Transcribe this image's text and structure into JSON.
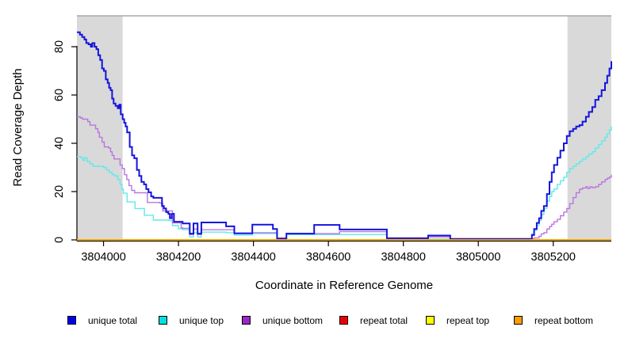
{
  "figure": {
    "background": "#ffffff"
  },
  "x_axis": {
    "title": "Coordinate in Reference Genome",
    "ticks": [
      3804000,
      3804200,
      3804400,
      3804600,
      3804800,
      3805000,
      3805200
    ]
  },
  "y_axis": {
    "title": "Read Coverage Depth",
    "ticks": [
      0,
      20,
      40,
      60,
      80
    ]
  },
  "colors": {
    "shaded_region": "#d9d9d9",
    "top_border": "#a8a8a8",
    "axis": "#000000",
    "unique_total": "#1414dc",
    "unique_top": "#5feaea",
    "unique_bottom": "#bb75e0",
    "repeat_total": "#e00000",
    "repeat_top": "#ffff00",
    "repeat_bottom": "#ffa500"
  },
  "legend": [
    {
      "label": "unique total",
      "color": "#0000ee"
    },
    {
      "label": "unique top",
      "color": "#00e0e0"
    },
    {
      "label": "unique bottom",
      "color": "#9a28c8"
    },
    {
      "label": "repeat total",
      "color": "#ee0000"
    },
    {
      "label": "repeat top",
      "color": "#ffff00"
    },
    {
      "label": "repeat bottom",
      "color": "#ff9d00"
    }
  ],
  "chart_data": {
    "type": "line",
    "step": true,
    "title": "",
    "xlabel": "Coordinate in Reference Genome",
    "ylabel": "Read Coverage Depth",
    "xlim": [
      3803929,
      3805355
    ],
    "ylim": [
      0,
      94
    ],
    "grid": false,
    "legend_position": "bottom",
    "shaded_regions": [
      {
        "from": 3803929,
        "to": 3804051
      },
      {
        "from": 3805238,
        "to": 3805355
      }
    ],
    "series": [
      {
        "name": "repeat total",
        "key": "repeat_total",
        "width": 1.4,
        "points": [
          [
            3803929,
            0
          ],
          [
            3805355,
            0
          ]
        ]
      },
      {
        "name": "repeat top",
        "key": "repeat_top",
        "width": 1.4,
        "points": [
          [
            3803929,
            0
          ],
          [
            3805355,
            0
          ]
        ]
      },
      {
        "name": "unique top",
        "key": "unique_top",
        "width": 1.4,
        "points": [
          [
            3803929,
            34.5
          ],
          [
            3803940,
            34
          ],
          [
            3803945,
            33
          ],
          [
            3803950,
            34
          ],
          [
            3803956,
            32.5
          ],
          [
            3803964,
            31.5
          ],
          [
            3803972,
            30.5
          ],
          [
            3804000,
            30
          ],
          [
            3804008,
            29
          ],
          [
            3804015,
            28
          ],
          [
            3804023,
            27
          ],
          [
            3804030,
            26.5
          ],
          [
            3804038,
            25
          ],
          [
            3804044,
            23
          ],
          [
            3804049,
            21
          ],
          [
            3804053,
            19.3
          ],
          [
            3804063,
            15.7
          ],
          [
            3804084,
            13
          ],
          [
            3804109,
            10.2
          ],
          [
            3804133,
            8.2
          ],
          [
            3804175,
            8
          ],
          [
            3804184,
            5.9
          ],
          [
            3804200,
            4.6
          ],
          [
            3804211,
            4.2
          ],
          [
            3804230,
            1.2
          ],
          [
            3804240,
            3
          ],
          [
            3804251,
            1.2
          ],
          [
            3804261,
            3.2
          ],
          [
            3804327,
            3
          ],
          [
            3804349,
            2
          ],
          [
            3804397,
            2.6
          ],
          [
            3804463,
            0.5
          ],
          [
            3804488,
            2.2
          ],
          [
            3804756,
            0.4
          ],
          [
            3805137,
            0.4
          ],
          [
            3805143,
            2.5
          ],
          [
            3805149,
            4
          ],
          [
            3805156,
            6
          ],
          [
            3805162,
            8
          ],
          [
            3805168,
            10.5
          ],
          [
            3805175,
            13
          ],
          [
            3805183,
            16
          ],
          [
            3805190,
            18
          ],
          [
            3805196,
            20
          ],
          [
            3805202,
            21
          ],
          [
            3805211,
            23
          ],
          [
            3805219,
            24.5
          ],
          [
            3805228,
            26
          ],
          [
            3805236,
            28
          ],
          [
            3805244,
            29.5
          ],
          [
            3805253,
            30.5
          ],
          [
            3805261,
            31.5
          ],
          [
            3805270,
            32.5
          ],
          [
            3805278,
            33.5
          ],
          [
            3805287,
            34.5
          ],
          [
            3805295,
            35.5
          ],
          [
            3805304,
            36.5
          ],
          [
            3805312,
            38
          ],
          [
            3805321,
            39.5
          ],
          [
            3805329,
            41
          ],
          [
            3805338,
            42.5
          ],
          [
            3805344,
            44
          ],
          [
            3805350,
            45.5
          ],
          [
            3805355,
            47
          ]
        ]
      },
      {
        "name": "unique bottom",
        "key": "unique_bottom",
        "width": 1.4,
        "points": [
          [
            3803929,
            51
          ],
          [
            3803938,
            50.5
          ],
          [
            3803944,
            50
          ],
          [
            3803958,
            49
          ],
          [
            3803964,
            47.5
          ],
          [
            3803979,
            46
          ],
          [
            3803985,
            44.5
          ],
          [
            3803989,
            42.5
          ],
          [
            3803996,
            40.5
          ],
          [
            3804002,
            38.5
          ],
          [
            3804014,
            38
          ],
          [
            3804019,
            36.5
          ],
          [
            3804023,
            35
          ],
          [
            3804028,
            33.5
          ],
          [
            3804044,
            31
          ],
          [
            3804050,
            29.5
          ],
          [
            3804056,
            27
          ],
          [
            3804062,
            25
          ],
          [
            3804068,
            22.5
          ],
          [
            3804075,
            20.5
          ],
          [
            3804083,
            19.5
          ],
          [
            3804117,
            15.5
          ],
          [
            3804150,
            15.2
          ],
          [
            3804158,
            12
          ],
          [
            3804184,
            7
          ],
          [
            3804207,
            5
          ],
          [
            3804211,
            4.8
          ],
          [
            3804230,
            2.2
          ],
          [
            3804240,
            4.5
          ],
          [
            3804251,
            2.2
          ],
          [
            3804261,
            4.2
          ],
          [
            3804327,
            4.2
          ],
          [
            3804349,
            2.8
          ],
          [
            3804397,
            3
          ],
          [
            3804452,
            3
          ],
          [
            3804463,
            0.8
          ],
          [
            3804488,
            2.6
          ],
          [
            3804630,
            3.4
          ],
          [
            3804756,
            0.5
          ],
          [
            3804866,
            1.2
          ],
          [
            3804925,
            0.4
          ],
          [
            3805137,
            0.4
          ],
          [
            3805149,
            0.8
          ],
          [
            3805162,
            1.5
          ],
          [
            3805168,
            2.5
          ],
          [
            3805175,
            3
          ],
          [
            3805183,
            4.5
          ],
          [
            3805190,
            5.5
          ],
          [
            3805196,
            6.5
          ],
          [
            3805202,
            7.5
          ],
          [
            3805211,
            8.5
          ],
          [
            3805219,
            10
          ],
          [
            3805228,
            11.5
          ],
          [
            3805236,
            13
          ],
          [
            3805244,
            15
          ],
          [
            3805253,
            17.5
          ],
          [
            3805261,
            19.5
          ],
          [
            3805270,
            21
          ],
          [
            3805278,
            21.5
          ],
          [
            3805287,
            22
          ],
          [
            3805292,
            21.3
          ],
          [
            3805298,
            22
          ],
          [
            3805304,
            21.6
          ],
          [
            3805312,
            22
          ],
          [
            3805321,
            23
          ],
          [
            3805329,
            24
          ],
          [
            3805338,
            25
          ],
          [
            3805344,
            25.5
          ],
          [
            3805350,
            26
          ],
          [
            3805355,
            27
          ]
        ]
      },
      {
        "name": "unique total",
        "key": "unique_total",
        "width": 2,
        "points": [
          [
            3803929,
            86
          ],
          [
            3803937,
            85
          ],
          [
            3803943,
            84
          ],
          [
            3803949,
            83
          ],
          [
            3803954,
            81.5
          ],
          [
            3803960,
            81
          ],
          [
            3803966,
            80
          ],
          [
            3803970,
            81.5
          ],
          [
            3803976,
            80
          ],
          [
            3803981,
            79
          ],
          [
            3803986,
            76.5
          ],
          [
            3803991,
            74.5
          ],
          [
            3803996,
            71
          ],
          [
            3804001,
            70
          ],
          [
            3804006,
            66.5
          ],
          [
            3804011,
            65
          ],
          [
            3804015,
            63
          ],
          [
            3804019,
            62
          ],
          [
            3804023,
            58.5
          ],
          [
            3804027,
            56.5
          ],
          [
            3804032,
            55.5
          ],
          [
            3804038,
            54.5
          ],
          [
            3804042,
            56
          ],
          [
            3804046,
            52
          ],
          [
            3804051,
            50
          ],
          [
            3804055,
            48.5
          ],
          [
            3804059,
            47
          ],
          [
            3804063,
            44.5
          ],
          [
            3804070,
            38.5
          ],
          [
            3804076,
            35
          ],
          [
            3804082,
            33.8
          ],
          [
            3804089,
            29
          ],
          [
            3804095,
            26.5
          ],
          [
            3804101,
            24
          ],
          [
            3804108,
            23
          ],
          [
            3804114,
            21
          ],
          [
            3804120,
            19.7
          ],
          [
            3804127,
            18
          ],
          [
            3804133,
            17.4
          ],
          [
            3804156,
            14
          ],
          [
            3804161,
            13
          ],
          [
            3804167,
            11.5
          ],
          [
            3804173,
            10.8
          ],
          [
            3804177,
            9
          ],
          [
            3804182,
            10.8
          ],
          [
            3804188,
            7.5
          ],
          [
            3804211,
            6.8
          ],
          [
            3804230,
            2.6
          ],
          [
            3804240,
            6.8
          ],
          [
            3804251,
            2.6
          ],
          [
            3804261,
            7.2
          ],
          [
            3804327,
            5.6
          ],
          [
            3804349,
            2.7
          ],
          [
            3804397,
            6.3
          ],
          [
            3804452,
            4.5
          ],
          [
            3804463,
            0.5
          ],
          [
            3804488,
            2.6
          ],
          [
            3804562,
            6.2
          ],
          [
            3804630,
            4.3
          ],
          [
            3804756,
            0.7
          ],
          [
            3804866,
            1.8
          ],
          [
            3804925,
            0.4
          ],
          [
            3805137,
            0.4
          ],
          [
            3805143,
            2
          ],
          [
            3805149,
            4.5
          ],
          [
            3805156,
            7
          ],
          [
            3805162,
            9
          ],
          [
            3805168,
            12
          ],
          [
            3805175,
            14
          ],
          [
            3805183,
            19
          ],
          [
            3805190,
            24
          ],
          [
            3805196,
            28
          ],
          [
            3805202,
            31
          ],
          [
            3805211,
            34
          ],
          [
            3805219,
            37
          ],
          [
            3805228,
            40
          ],
          [
            3805236,
            43
          ],
          [
            3805244,
            45
          ],
          [
            3805253,
            46
          ],
          [
            3805261,
            47
          ],
          [
            3805270,
            47.5
          ],
          [
            3805278,
            49
          ],
          [
            3805287,
            51
          ],
          [
            3805295,
            53
          ],
          [
            3805304,
            55
          ],
          [
            3805312,
            58
          ],
          [
            3805321,
            59.5
          ],
          [
            3805329,
            62
          ],
          [
            3805338,
            65
          ],
          [
            3805344,
            68
          ],
          [
            3805350,
            71
          ],
          [
            3805355,
            74
          ]
        ]
      },
      {
        "name": "repeat bottom",
        "key": "repeat_bottom",
        "width": 1.8,
        "points": [
          [
            3803929,
            0
          ],
          [
            3805355,
            0
          ]
        ]
      }
    ]
  }
}
